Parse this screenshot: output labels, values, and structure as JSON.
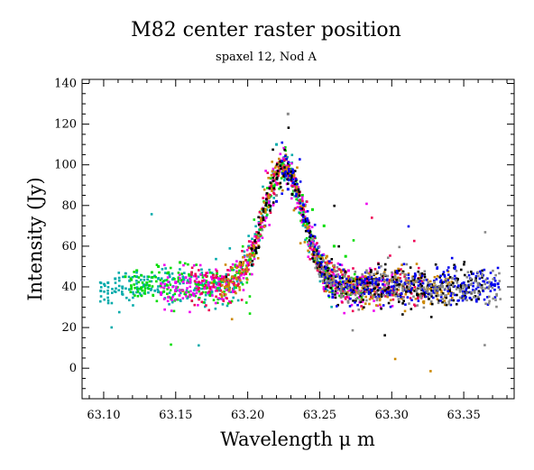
{
  "chart_data": {
    "type": "scatter",
    "title": "M82 center raster position",
    "subtitle": "spaxel 12, Nod A",
    "xlabel": "Wavelength μ m",
    "ylabel": "Intensity (Jy)",
    "xlim": [
      63.085,
      63.385
    ],
    "ylim": [
      -15,
      142
    ],
    "xticks": [
      "63.10",
      "63.15",
      "63.20",
      "63.25",
      "63.30",
      "63.35"
    ],
    "xtick_values": [
      63.1,
      63.15,
      63.2,
      63.25,
      63.3,
      63.35
    ],
    "yticks": [
      "0",
      "20",
      "40",
      "60",
      "80",
      "100",
      "120",
      "140"
    ],
    "ytick_values": [
      0,
      20,
      40,
      60,
      80,
      100,
      120,
      140
    ],
    "grid": false,
    "legend": "none",
    "series_colors": [
      "#00aaaa",
      "#00dd00",
      "#ee00ee",
      "#ee0055",
      "#cc8800",
      "#000000",
      "#0000ee",
      "#888888"
    ],
    "profile": {
      "continuum": 40,
      "line_center": 63.225,
      "line_peak": 98,
      "line_sigma": 0.014
    },
    "series": [
      {
        "color": "#00aaaa",
        "x": [
          63.098,
          63.103,
          63.108,
          63.113,
          63.118,
          63.123,
          63.128,
          63.133,
          63.138,
          63.215,
          63.22,
          63.225,
          63.23,
          63.235,
          63.24
        ],
        "y": [
          38,
          42,
          44,
          40,
          43,
          45,
          41,
          39,
          44,
          82,
          110,
          100,
          96,
          85,
          72
        ]
      },
      {
        "color": "#00dd00",
        "x": [
          63.115,
          63.123,
          63.13,
          63.138,
          63.145,
          63.153,
          63.16,
          63.168,
          63.23,
          63.238,
          63.245,
          63.253,
          63.26,
          63.268
        ],
        "y": [
          45,
          48,
          42,
          50,
          47,
          52,
          44,
          46,
          95,
          85,
          78,
          70,
          60,
          55
        ]
      },
      {
        "color": "#ee00ee",
        "x": [
          63.14,
          63.15,
          63.16,
          63.17,
          63.18,
          63.19,
          63.27,
          63.28,
          63.29,
          63.3,
          63.31,
          63.32
        ],
        "y": [
          40,
          42,
          44,
          43,
          41,
          45,
          48,
          45,
          42,
          40,
          43,
          41
        ]
      },
      {
        "color": "#ee0055",
        "x": [
          63.15,
          63.16,
          63.17,
          63.18,
          63.19,
          63.26,
          63.27,
          63.28,
          63.29,
          63.3
        ],
        "y": [
          38,
          36,
          40,
          42,
          39,
          50,
          45,
          43,
          40,
          38
        ]
      },
      {
        "color": "#cc8800",
        "x": [
          63.145,
          63.155,
          63.165,
          63.175,
          63.185,
          63.195,
          63.245,
          63.255,
          63.265,
          63.275
        ],
        "y": [
          35,
          38,
          40,
          42,
          44,
          46,
          60,
          55,
          48,
          44
        ]
      },
      {
        "color": "#000000",
        "x": [
          63.185,
          63.195,
          63.205,
          63.215,
          63.225,
          63.285,
          63.295,
          63.305,
          63.315,
          63.325,
          63.335,
          63.345
        ],
        "y": [
          45,
          52,
          62,
          80,
          95,
          42,
          40,
          41,
          43,
          40,
          42,
          44
        ]
      },
      {
        "color": "#0000ee",
        "x": [
          63.205,
          63.212,
          63.22,
          63.228,
          63.3,
          63.31,
          63.32,
          63.33,
          63.34,
          63.35,
          63.36,
          63.37
        ],
        "y": [
          58,
          70,
          82,
          88,
          40,
          42,
          43,
          40,
          41,
          42,
          40,
          41
        ]
      },
      {
        "color": "#888888",
        "x": [
          63.19,
          63.2,
          63.21,
          63.22,
          63.228,
          63.29,
          63.3,
          63.31,
          63.32,
          63.33,
          63.35,
          63.36
        ],
        "y": [
          45,
          55,
          68,
          85,
          125,
          38,
          36,
          38,
          40,
          37,
          36,
          35
        ]
      }
    ]
  }
}
